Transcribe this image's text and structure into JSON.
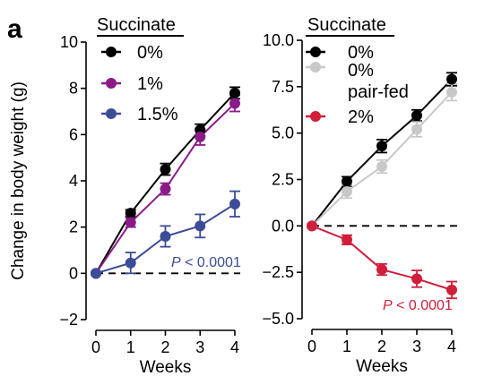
{
  "panel_label": "a",
  "chart_data": [
    {
      "type": "line",
      "xlabel": "Weeks",
      "ylabel": "Change in body weight (g)",
      "xlim": [
        0,
        4
      ],
      "ylim": [
        -2,
        10
      ],
      "x": [
        0,
        1,
        2,
        3,
        4
      ],
      "x_tick_labels": [
        "0",
        "1",
        "2",
        "3",
        "4"
      ],
      "y_ticks": [
        -2,
        0,
        2,
        4,
        6,
        8,
        10
      ],
      "y_tick_labels": [
        "−2",
        "0",
        "2",
        "4",
        "6",
        "8",
        "10"
      ],
      "baseline": 0,
      "legend_title": "Succinate",
      "legend_position": "top-left",
      "series": [
        {
          "name": "0%",
          "color": "#000000",
          "values": [
            0,
            2.6,
            4.5,
            6.2,
            7.8
          ],
          "errors": [
            0,
            0.15,
            0.25,
            0.25,
            0.25
          ]
        },
        {
          "name": "1%",
          "color": "#8b1a89",
          "values": [
            0,
            2.2,
            3.65,
            5.9,
            7.35
          ],
          "errors": [
            0,
            0.2,
            0.25,
            0.35,
            0.35
          ]
        },
        {
          "name": "1.5%",
          "color": "#3d4c97",
          "values": [
            0,
            0.45,
            1.6,
            2.05,
            3.0
          ],
          "errors": [
            0,
            0.45,
            0.45,
            0.5,
            0.55
          ]
        }
      ],
      "annotation": {
        "italic": "P",
        "text": " < 0.0001",
        "color": "#3d4c97"
      }
    },
    {
      "type": "line",
      "xlabel": "Weeks",
      "ylabel": "",
      "xlim": [
        0,
        4
      ],
      "ylim": [
        -5,
        10
      ],
      "x": [
        0,
        1,
        2,
        3,
        4
      ],
      "x_tick_labels": [
        "0",
        "1",
        "2",
        "3",
        "4"
      ],
      "y_ticks": [
        -5,
        -2.5,
        0,
        2.5,
        5,
        7.5,
        10
      ],
      "y_tick_labels": [
        "−5.0",
        "−2.5",
        "0.0",
        "2.5",
        "5.0",
        "7.5",
        "10.0"
      ],
      "baseline": 0,
      "legend_title": "Succinate",
      "legend_position": "top-left",
      "series": [
        {
          "name": "0%",
          "color": "#000000",
          "values": [
            0,
            2.4,
            4.3,
            5.95,
            7.9
          ],
          "errors": [
            0,
            0.25,
            0.35,
            0.3,
            0.35
          ]
        },
        {
          "name": "0% pair-fed",
          "name_lines": [
            "0%",
            "pair-fed"
          ],
          "color": "#c8c8c8",
          "values": [
            0,
            1.85,
            3.2,
            5.2,
            7.2
          ],
          "errors": [
            0,
            0.35,
            0.35,
            0.4,
            0.45
          ]
        },
        {
          "name": "2%",
          "color": "#cf1f3a",
          "values": [
            0,
            -0.75,
            -2.35,
            -2.85,
            -3.45
          ],
          "errors": [
            0,
            0.25,
            0.3,
            0.45,
            0.45
          ]
        }
      ],
      "annotation": {
        "italic": "P",
        "text": " < 0.0001",
        "color": "#cf1f3a"
      }
    }
  ]
}
